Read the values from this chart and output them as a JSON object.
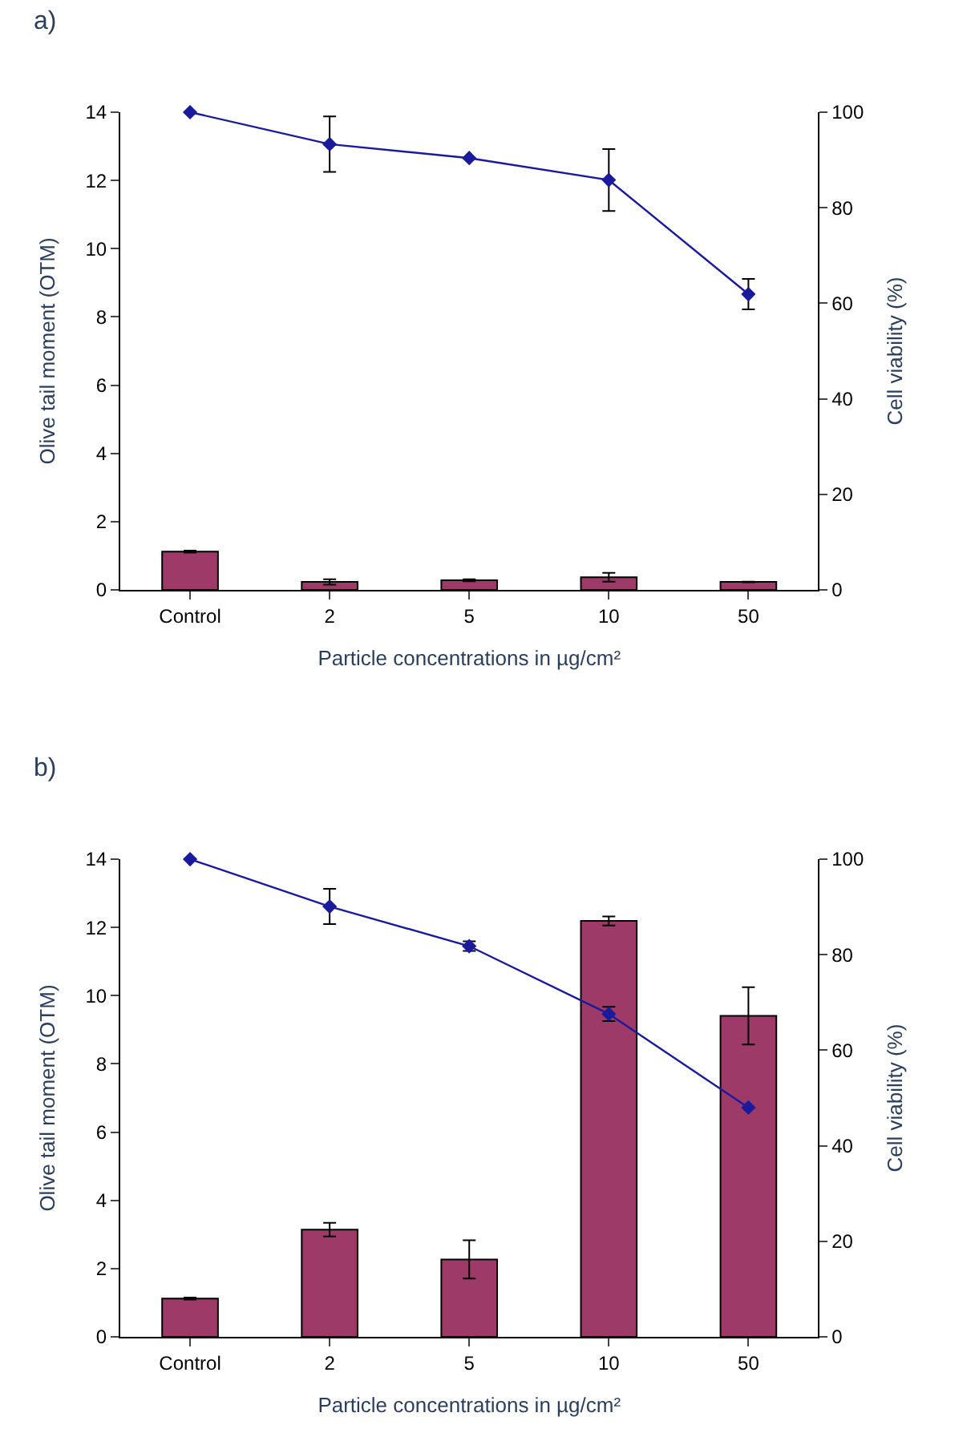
{
  "chart_data": [
    {
      "type": "bar",
      "title": "a)",
      "categories": [
        "Control",
        "2",
        "5",
        "10",
        "50"
      ],
      "xlabel": "Particle concentrations in µg/cm²",
      "ylabel": "Olive tail moment (OTM)",
      "y2label": "Cell viability (%)",
      "ylim": [
        0,
        14
      ],
      "yticks": [
        0,
        2,
        4,
        6,
        8,
        10,
        12,
        14
      ],
      "y2lim": [
        0,
        100
      ],
      "y2ticks": [
        0,
        20,
        40,
        60,
        80,
        100
      ],
      "series": [
        {
          "color": "#9e3a68",
          "values": [
            1.12,
            0.23,
            0.28,
            0.37,
            0.23
          ],
          "errors": [
            0.03,
            0.08,
            0.03,
            0.13,
            0.01
          ]
        },
        {
          "type": "line",
          "axis": "y2",
          "color": "#1a1a9c",
          "marker": "diamond",
          "line_style": "solid",
          "values": [
            100,
            93.3,
            90.4,
            85.8,
            61.9
          ],
          "errors": [
            null,
            5.8,
            null,
            6.5,
            3.2
          ]
        }
      ]
    },
    {
      "type": "bar",
      "title": "b)",
      "categories": [
        "Control",
        "2",
        "5",
        "10",
        "50"
      ],
      "xlabel": "Particle concentrations in µg/cm²",
      "ylabel": "Olive tail moment (OTM)",
      "y2label": "Cell viability (%)",
      "ylim": [
        0,
        14
      ],
      "yticks": [
        0,
        2,
        4,
        6,
        8,
        10,
        12,
        14
      ],
      "y2lim": [
        0,
        100
      ],
      "y2ticks": [
        0,
        20,
        40,
        60,
        80,
        100
      ],
      "series": [
        {
          "color": "#9e3a68",
          "values": [
            1.12,
            3.14,
            2.27,
            12.19,
            9.41
          ],
          "errors": [
            0.03,
            0.2,
            0.56,
            0.13,
            0.84
          ]
        },
        {
          "type": "line",
          "axis": "y2",
          "color": "#1a1a9c",
          "marker": "diamond",
          "line_style": "solid",
          "values": [
            100,
            90.1,
            81.8,
            67.6,
            48.0
          ],
          "errors": [
            null,
            3.7,
            1.0,
            1.5,
            null
          ]
        }
      ]
    }
  ]
}
